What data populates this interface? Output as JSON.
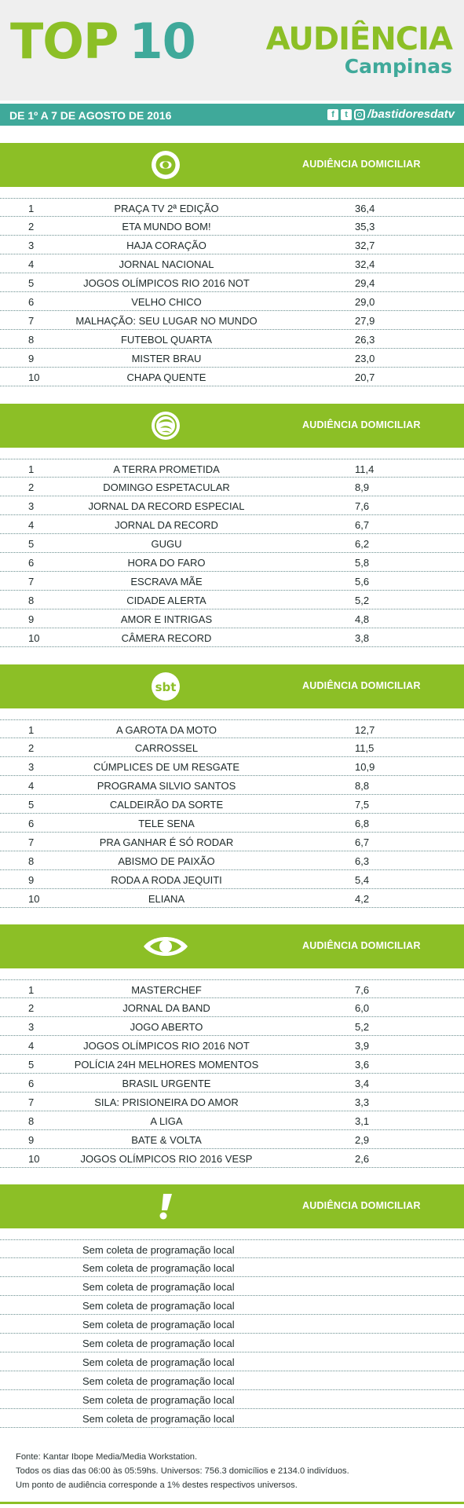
{
  "header": {
    "title_top": "TOP",
    "title_num": "10",
    "brand_l1": "AUDIÊNCIA",
    "brand_l2": "Campinas"
  },
  "datebar": {
    "date": "DE 1º A 7 DE AGOSTO DE 2016",
    "handle": "/bastidoresdatv"
  },
  "colors": {
    "green": "#8cbf26",
    "teal": "#3fa99a"
  },
  "sections": [
    {
      "logo": "globo-logo-icon",
      "label": "AUDIÊNCIA DOMICILIAR",
      "rows": [
        {
          "rank": "1",
          "program": "PRAÇA TV 2ª EDIÇÃO",
          "value": "36,4"
        },
        {
          "rank": "2",
          "program": "ETA MUNDO BOM!",
          "value": "35,3"
        },
        {
          "rank": "3",
          "program": "HAJA CORAÇÃO",
          "value": "32,7"
        },
        {
          "rank": "4",
          "program": "JORNAL NACIONAL",
          "value": "32,4"
        },
        {
          "rank": "5",
          "program": "JOGOS OLÍMPICOS RIO 2016 NOT",
          "value": "29,4"
        },
        {
          "rank": "6",
          "program": "VELHO CHICO",
          "value": "29,0"
        },
        {
          "rank": "7",
          "program": "MALHAÇÃO: SEU LUGAR NO MUNDO",
          "value": "27,9"
        },
        {
          "rank": "8",
          "program": "FUTEBOL QUARTA",
          "value": "26,3"
        },
        {
          "rank": "9",
          "program": "MISTER BRAU",
          "value": "23,0"
        },
        {
          "rank": "10",
          "program": "CHAPA QUENTE",
          "value": "20,7"
        }
      ]
    },
    {
      "logo": "record-logo-icon",
      "label": "AUDIÊNCIA DOMICILIAR",
      "rows": [
        {
          "rank": "1",
          "program": "A TERRA PROMETIDA",
          "value": "11,4"
        },
        {
          "rank": "2",
          "program": "DOMINGO ESPETACULAR",
          "value": "8,9"
        },
        {
          "rank": "3",
          "program": "JORNAL DA RECORD ESPECIAL",
          "value": "7,6"
        },
        {
          "rank": "4",
          "program": "JORNAL DA RECORD",
          "value": "6,7"
        },
        {
          "rank": "5",
          "program": "GUGU",
          "value": "6,2"
        },
        {
          "rank": "6",
          "program": "HORA DO FARO",
          "value": "5,8"
        },
        {
          "rank": "7",
          "program": "ESCRAVA MÃE",
          "value": "5,6"
        },
        {
          "rank": "8",
          "program": "CIDADE ALERTA",
          "value": "5,2"
        },
        {
          "rank": "9",
          "program": "AMOR E INTRIGAS",
          "value": "4,8"
        },
        {
          "rank": "10",
          "program": "CÂMERA RECORD",
          "value": "3,8"
        }
      ]
    },
    {
      "logo": "sbt-logo-icon",
      "logo_text": "sbt",
      "label": "AUDIÊNCIA DOMICILIAR",
      "rows": [
        {
          "rank": "1",
          "program": "A GAROTA DA MOTO",
          "value": "12,7"
        },
        {
          "rank": "2",
          "program": "CARROSSEL",
          "value": "11,5"
        },
        {
          "rank": "3",
          "program": "CÚMPLICES DE UM RESGATE",
          "value": "10,9"
        },
        {
          "rank": "4",
          "program": "PROGRAMA SILVIO SANTOS",
          "value": "8,8"
        },
        {
          "rank": "5",
          "program": "CALDEIRÃO DA SORTE",
          "value": "7,5"
        },
        {
          "rank": "6",
          "program": "TELE SENA",
          "value": "6,8"
        },
        {
          "rank": "7",
          "program": "PRA GANHAR É SÓ RODAR",
          "value": "6,7"
        },
        {
          "rank": "8",
          "program": "ABISMO DE PAIXÃO",
          "value": "6,3"
        },
        {
          "rank": "9",
          "program": "RODA A RODA JEQUITI",
          "value": "5,4"
        },
        {
          "rank": "10",
          "program": "ELIANA",
          "value": "4,2"
        }
      ]
    },
    {
      "logo": "band-logo-icon",
      "label": "AUDIÊNCIA DOMICILIAR",
      "rows": [
        {
          "rank": "1",
          "program": "MASTERCHEF",
          "value": "7,6"
        },
        {
          "rank": "2",
          "program": "JORNAL DA BAND",
          "value": "6,0"
        },
        {
          "rank": "3",
          "program": "JOGO ABERTO",
          "value": "5,2"
        },
        {
          "rank": "4",
          "program": "JOGOS OLÍMPICOS RIO 2016 NOT",
          "value": "3,9"
        },
        {
          "rank": "5",
          "program": "POLÍCIA 24H MELHORES MOMENTOS",
          "value": "3,6"
        },
        {
          "rank": "6",
          "program": "BRASIL URGENTE",
          "value": "3,4"
        },
        {
          "rank": "7",
          "program": "SILA: PRISIONEIRA DO AMOR",
          "value": "3,3"
        },
        {
          "rank": "8",
          "program": "A LIGA",
          "value": "3,1"
        },
        {
          "rank": "9",
          "program": "BATE & VOLTA",
          "value": "2,9"
        },
        {
          "rank": "10",
          "program": "JOGOS OLÍMPICOS RIO 2016 VESP",
          "value": "2,6"
        }
      ]
    },
    {
      "logo": "redetv-logo-icon",
      "label": "AUDIÊNCIA DOMICILIAR",
      "nodata_rows": [
        "Sem coleta de programação local",
        "Sem coleta de programação local",
        "Sem coleta de programação local",
        "Sem coleta de programação local",
        "Sem coleta de programação local",
        "Sem coleta de programação local",
        "Sem coleta de programação local",
        "Sem coleta de programação local",
        "Sem coleta de programação local",
        "Sem coleta de programação local"
      ]
    }
  ],
  "footer": {
    "line1": "Fonte: Kantar Ibope Media/Media Workstation.",
    "line2": "Todos os dias das 06:00 às 05:59hs. Universos: 756.3 domicílios e 2134.0 indivíduos.",
    "line3": "Um ponto de audiência corresponde a 1% destes respectivos universos."
  }
}
